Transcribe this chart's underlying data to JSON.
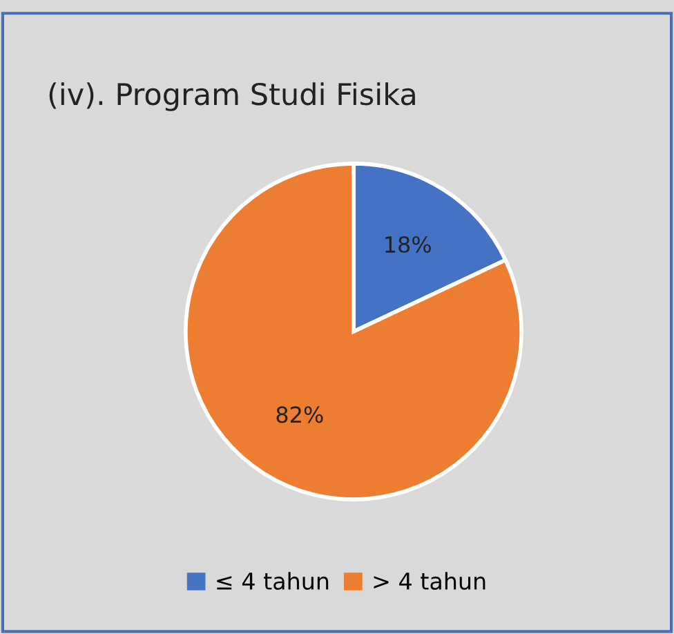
{
  "chart_data": {
    "type": "pie",
    "title": "(iv). Program Studi Fisika",
    "categories": [
      "≤ 4 tahun",
      "> 4 tahun"
    ],
    "values": [
      18,
      82
    ],
    "colors": [
      "#4472c4",
      "#ed7d31"
    ],
    "value_labels": [
      "18%",
      "82%"
    ],
    "legend": "bottom"
  }
}
